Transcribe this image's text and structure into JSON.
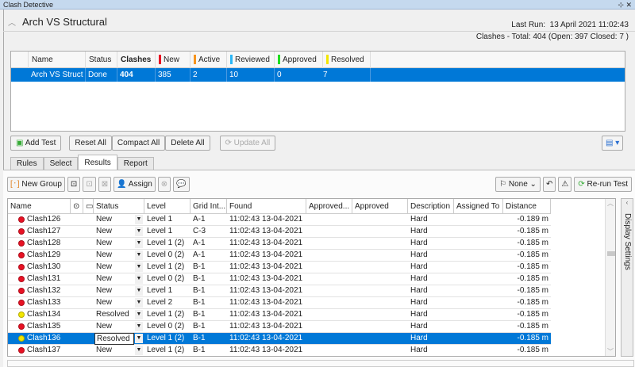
{
  "window": {
    "title": "Clash Detective"
  },
  "test": {
    "name": "Arch VS Structural",
    "last_run_label": "Last Run:",
    "last_run": "13 April 2021 11:02:43",
    "totals": "Clashes -  Total:  404  (Open:  397  Closed:  7 )"
  },
  "tests_table": {
    "headers": {
      "name": "Name",
      "status": "Status",
      "clashes": "Clashes",
      "new": "New",
      "active": "Active",
      "reviewed": "Reviewed",
      "approved": "Approved",
      "resolved": "Resolved"
    },
    "colors": {
      "new": "#e81123",
      "active": "#f7941d",
      "reviewed": "#29b6f6",
      "approved": "#22dd22",
      "resolved": "#f2e600"
    },
    "row": {
      "name": "Arch VS Struct",
      "status": "Done",
      "clashes": "404",
      "new": "385",
      "active": "2",
      "reviewed": "10",
      "approved": "0",
      "resolved": "7"
    }
  },
  "buttons": {
    "add_test": "Add Test",
    "reset_all": "Reset All",
    "compact_all": "Compact All",
    "delete_all": "Delete All",
    "update_all": "Update All"
  },
  "tabs": [
    "Rules",
    "Select",
    "Results",
    "Report"
  ],
  "results_toolbar": {
    "new_group": "New Group",
    "assign": "Assign",
    "none": "None",
    "rerun": "Re-run Test"
  },
  "results": {
    "headers": [
      "Name",
      "Status",
      "Level",
      "Grid Int...",
      "Found",
      "Approved...",
      "Approved",
      "Description",
      "Assigned To",
      "Distance"
    ],
    "rows": [
      {
        "name": "Clash126",
        "status": "New",
        "level": "Level 1",
        "grid": "A-1",
        "found": "11:02:43 13-04-2021",
        "description": "Hard",
        "distance": "-0.189 m",
        "color": "#e81123"
      },
      {
        "name": "Clash127",
        "status": "New",
        "level": "Level 1",
        "grid": "C-3",
        "found": "11:02:43 13-04-2021",
        "description": "Hard",
        "distance": "-0.185 m",
        "color": "#e81123"
      },
      {
        "name": "Clash128",
        "status": "New",
        "level": "Level 1 (2)",
        "grid": "A-1",
        "found": "11:02:43 13-04-2021",
        "description": "Hard",
        "distance": "-0.185 m",
        "color": "#e81123"
      },
      {
        "name": "Clash129",
        "status": "New",
        "level": "Level 0 (2)",
        "grid": "A-1",
        "found": "11:02:43 13-04-2021",
        "description": "Hard",
        "distance": "-0.185 m",
        "color": "#e81123"
      },
      {
        "name": "Clash130",
        "status": "New",
        "level": "Level 1 (2)",
        "grid": "B-1",
        "found": "11:02:43 13-04-2021",
        "description": "Hard",
        "distance": "-0.185 m",
        "color": "#e81123"
      },
      {
        "name": "Clash131",
        "status": "New",
        "level": "Level 0 (2)",
        "grid": "B-1",
        "found": "11:02:43 13-04-2021",
        "description": "Hard",
        "distance": "-0.185 m",
        "color": "#e81123"
      },
      {
        "name": "Clash132",
        "status": "New",
        "level": "Level 1",
        "grid": "B-1",
        "found": "11:02:43 13-04-2021",
        "description": "Hard",
        "distance": "-0.185 m",
        "color": "#e81123"
      },
      {
        "name": "Clash133",
        "status": "New",
        "level": "Level 2",
        "grid": "B-1",
        "found": "11:02:43 13-04-2021",
        "description": "Hard",
        "distance": "-0.185 m",
        "color": "#e81123"
      },
      {
        "name": "Clash134",
        "status": "Resolved",
        "level": "Level 1 (2)",
        "grid": "B-1",
        "found": "11:02:43 13-04-2021",
        "description": "Hard",
        "distance": "-0.185 m",
        "color": "#f2e600"
      },
      {
        "name": "Clash135",
        "status": "New",
        "level": "Level 0 (2)",
        "grid": "B-1",
        "found": "11:02:43 13-04-2021",
        "description": "Hard",
        "distance": "-0.185 m",
        "color": "#e81123"
      },
      {
        "name": "Clash136",
        "status": "Resolved",
        "level": "Level 1 (2)",
        "grid": "B-1",
        "found": "11:02:43 13-04-2021",
        "description": "Hard",
        "distance": "-0.185 m",
        "color": "#f2e600",
        "selected": true
      },
      {
        "name": "Clash137",
        "status": "New",
        "level": "Level 1 (2)",
        "grid": "B-1",
        "found": "11:02:43 13-04-2021",
        "description": "Hard",
        "distance": "-0.185 m",
        "color": "#e81123"
      }
    ]
  },
  "side_panel": {
    "label": "Display Settings"
  }
}
